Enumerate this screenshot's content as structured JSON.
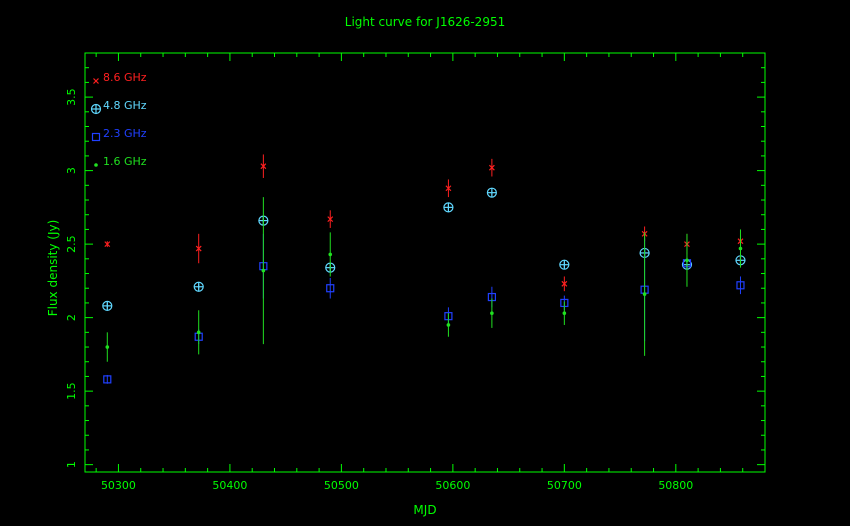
{
  "chart_data": {
    "type": "scatter",
    "title": "Light curve for J1626-2951",
    "xlabel": "MJD",
    "ylabel": "Flux density (Jy)",
    "xlim": [
      50270,
      50880
    ],
    "ylim": [
      0.95,
      3.8
    ],
    "xticks": [
      50300,
      50400,
      50500,
      50600,
      50700,
      50800
    ],
    "yticks": [
      1,
      1.5,
      2,
      2.5,
      3,
      3.5
    ],
    "legend_position": "top-left",
    "colors": {
      "axis": "#00ff00",
      "title": "#00ff00",
      "text": "#00ff00"
    },
    "series": [
      {
        "name": "8.6 GHz",
        "color": "#ff2020",
        "marker": "cross",
        "points": [
          {
            "x": 50290,
            "y": 2.5,
            "err": 0.02
          },
          {
            "x": 50372,
            "y": 2.47,
            "err": 0.1
          },
          {
            "x": 50430,
            "y": 3.03,
            "err": 0.08
          },
          {
            "x": 50490,
            "y": 2.67,
            "err": 0.06
          },
          {
            "x": 50596,
            "y": 2.88,
            "err": 0.06
          },
          {
            "x": 50635,
            "y": 3.02,
            "err": 0.06
          },
          {
            "x": 50700,
            "y": 2.23,
            "err": 0.05
          },
          {
            "x": 50772,
            "y": 2.57,
            "err": 0.05
          },
          {
            "x": 50810,
            "y": 2.5,
            "err": 0.07
          },
          {
            "x": 50858,
            "y": 2.52,
            "err": 0.04
          }
        ]
      },
      {
        "name": "4.8 GHz",
        "color": "#60d8ff",
        "marker": "circle-plus",
        "points": [
          {
            "x": 50290,
            "y": 2.08,
            "err": 0.02
          },
          {
            "x": 50372,
            "y": 2.21,
            "err": 0.02
          },
          {
            "x": 50430,
            "y": 2.66,
            "err": 0.03
          },
          {
            "x": 50490,
            "y": 2.34,
            "err": 0.03
          },
          {
            "x": 50596,
            "y": 2.75,
            "err": 0.02
          },
          {
            "x": 50635,
            "y": 2.85,
            "err": 0.02
          },
          {
            "x": 50700,
            "y": 2.36,
            "err": 0.02
          },
          {
            "x": 50772,
            "y": 2.44,
            "err": 0.03
          },
          {
            "x": 50810,
            "y": 2.36,
            "err": 0.03
          },
          {
            "x": 50858,
            "y": 2.39,
            "err": 0.03
          }
        ]
      },
      {
        "name": "2.3 GHz",
        "color": "#2040ff",
        "marker": "square",
        "points": [
          {
            "x": 50290,
            "y": 1.58,
            "err": 0.03
          },
          {
            "x": 50372,
            "y": 1.87,
            "err": 0.05
          },
          {
            "x": 50430,
            "y": 2.35,
            "err": 0.22
          },
          {
            "x": 50490,
            "y": 2.2,
            "err": 0.07
          },
          {
            "x": 50596,
            "y": 2.01,
            "err": 0.06
          },
          {
            "x": 50635,
            "y": 2.14,
            "err": 0.07
          },
          {
            "x": 50700,
            "y": 2.1,
            "err": 0.05
          },
          {
            "x": 50772,
            "y": 2.19,
            "err": 0.35
          },
          {
            "x": 50810,
            "y": 2.37,
            "err": 0.04
          },
          {
            "x": 50858,
            "y": 2.22,
            "err": 0.06
          }
        ]
      },
      {
        "name": "1.6 GHz",
        "color": "#20e020",
        "marker": "dot",
        "points": [
          {
            "x": 50290,
            "y": 1.8,
            "err": 0.1
          },
          {
            "x": 50372,
            "y": 1.9,
            "err": 0.15
          },
          {
            "x": 50430,
            "y": 2.32,
            "err": 0.5
          },
          {
            "x": 50490,
            "y": 2.43,
            "err": 0.15
          },
          {
            "x": 50596,
            "y": 1.95,
            "err": 0.08
          },
          {
            "x": 50635,
            "y": 2.03,
            "err": 0.1
          },
          {
            "x": 50700,
            "y": 2.03,
            "err": 0.08
          },
          {
            "x": 50772,
            "y": 2.16,
            "err": 0.42
          },
          {
            "x": 50810,
            "y": 2.39,
            "err": 0.18
          },
          {
            "x": 50858,
            "y": 2.47,
            "err": 0.13
          }
        ]
      }
    ]
  }
}
